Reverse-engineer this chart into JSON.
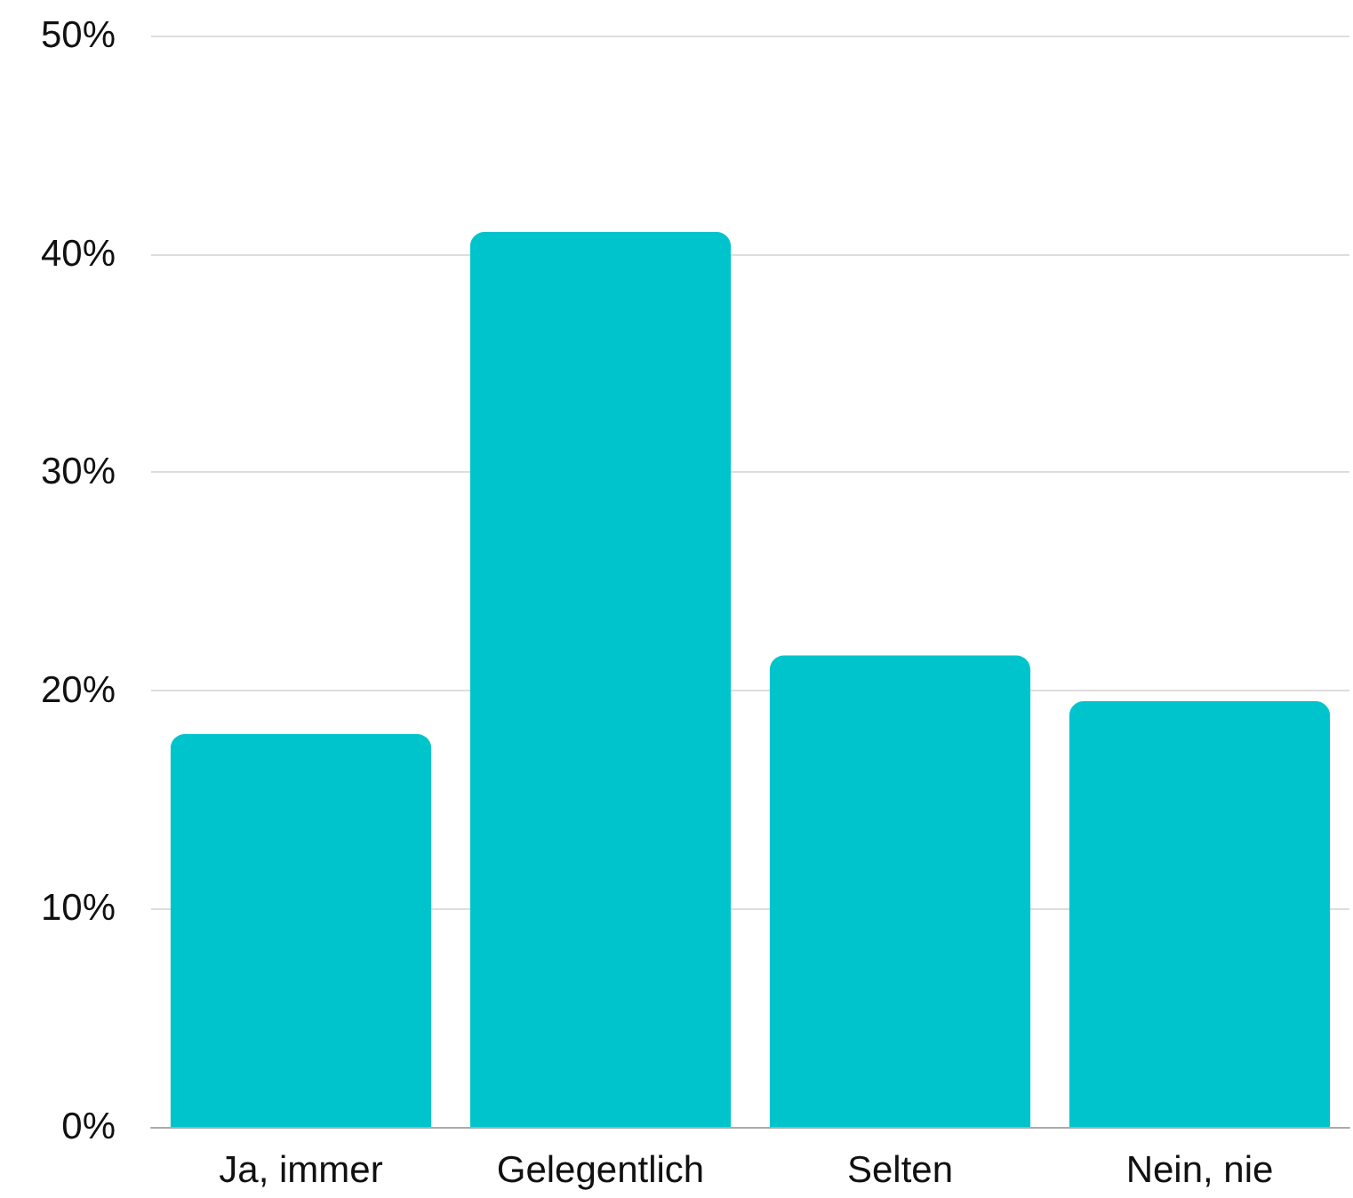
{
  "chart_data": {
    "type": "bar",
    "categories": [
      "Ja, immer",
      "Gelegentlich",
      "Selten",
      "Nein, nie"
    ],
    "values": [
      18,
      41,
      21.6,
      19.5
    ],
    "color": "#00c4cc",
    "ylim": [
      0,
      50
    ],
    "yticks": [
      {
        "value": 0,
        "label": "0%"
      },
      {
        "value": 10,
        "label": "10%"
      },
      {
        "value": 20,
        "label": "20%"
      },
      {
        "value": 30,
        "label": "30%"
      },
      {
        "value": 40,
        "label": "40%"
      },
      {
        "value": 50,
        "label": "50%"
      }
    ],
    "grid": true
  }
}
